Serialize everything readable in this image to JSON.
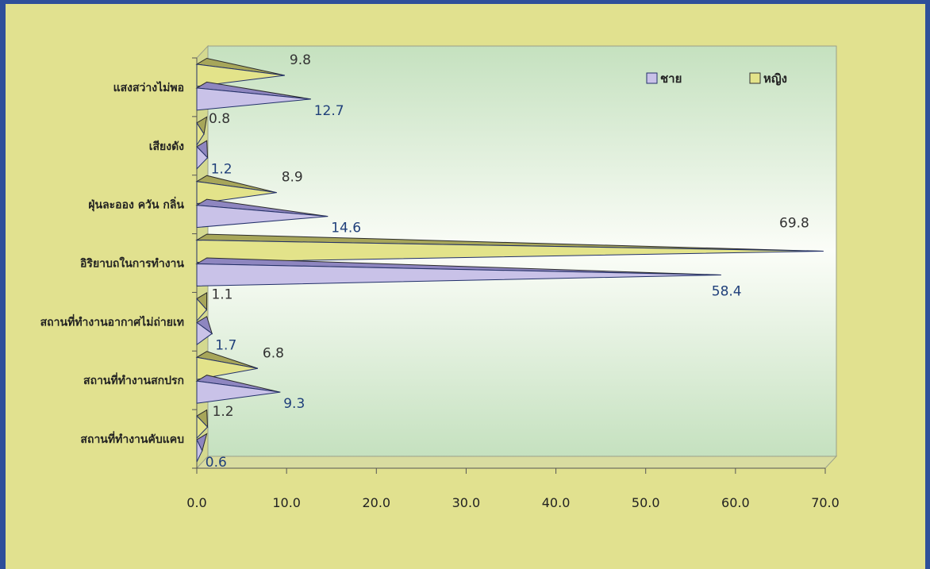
{
  "chart_data": {
    "type": "bar",
    "orientation": "horizontal",
    "categories": [
      "แสงสว่างไม่พอ",
      "เสียงดัง",
      "ฝุ่นละออง ควัน กลิ่น",
      "อิริยาบถในการทำงาน",
      "สถานที่ทำงานอากาศไม่ถ่ายเท",
      "สถานที่ทำงานสกปรก",
      "สถานที่ทำงานคับแคบ"
    ],
    "series": [
      {
        "name": "ชาย",
        "values": [
          12.7,
          1.2,
          14.6,
          58.4,
          1.7,
          9.3,
          0.6
        ],
        "color": "#c9c2e8"
      },
      {
        "name": "หญิง",
        "values": [
          9.8,
          0.8,
          8.9,
          69.8,
          1.1,
          6.8,
          1.2
        ],
        "color": "#e3e38a"
      }
    ],
    "value_labels_male": [
      "12.7",
      "1.2",
      "14.6",
      "58.4",
      "1.7",
      "9.3",
      "0.6"
    ],
    "value_labels_female": [
      "9.8",
      "0.8",
      "8.9",
      "69.8",
      "1.1",
      "6.8",
      "1.2"
    ],
    "xlim": [
      0,
      70
    ],
    "xticks": [
      "0.0",
      "10.0",
      "20.0",
      "30.0",
      "40.0",
      "50.0",
      "60.0",
      "70.0"
    ],
    "legend_position": "top-right",
    "title": "",
    "xlabel": "",
    "ylabel": ""
  }
}
